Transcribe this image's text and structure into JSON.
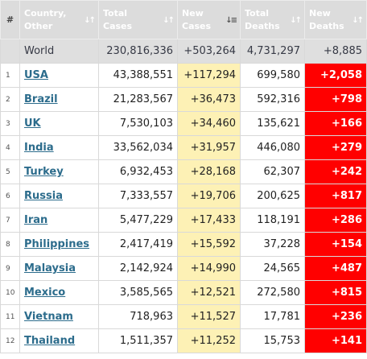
{
  "table": {
    "headers": {
      "rank": "#",
      "country": [
        "Country,",
        "Other"
      ],
      "total_cases": [
        "Total",
        "Cases"
      ],
      "new_cases": [
        "New",
        "Cases"
      ],
      "total_deaths": [
        "Total",
        "Deaths"
      ],
      "new_deaths": [
        "New",
        "Deaths"
      ]
    },
    "icons": {
      "sort": "sort-arrows-icon",
      "sort_active": "sort-descending-icon"
    },
    "colors": {
      "header_bg": "#dcdcdc",
      "world_bg": "#dfdfdf",
      "new_cases_bg": "#fdf1b5",
      "new_deaths_bg": "#ff0000",
      "country_link": "#2c6c8c"
    },
    "world": {
      "country": "World",
      "total_cases": "230,816,336",
      "new_cases": "+503,264",
      "total_deaths": "4,731,297",
      "new_deaths": "+8,885"
    },
    "rows": [
      {
        "rank": "1",
        "country": "USA",
        "total_cases": "43,388,551",
        "new_cases": "+117,294",
        "total_deaths": "699,580",
        "new_deaths": "+2,058"
      },
      {
        "rank": "2",
        "country": "Brazil",
        "total_cases": "21,283,567",
        "new_cases": "+36,473",
        "total_deaths": "592,316",
        "new_deaths": "+798"
      },
      {
        "rank": "3",
        "country": "UK",
        "total_cases": "7,530,103",
        "new_cases": "+34,460",
        "total_deaths": "135,621",
        "new_deaths": "+166"
      },
      {
        "rank": "4",
        "country": "India",
        "total_cases": "33,562,034",
        "new_cases": "+31,957",
        "total_deaths": "446,080",
        "new_deaths": "+279"
      },
      {
        "rank": "5",
        "country": "Turkey",
        "total_cases": "6,932,453",
        "new_cases": "+28,168",
        "total_deaths": "62,307",
        "new_deaths": "+242"
      },
      {
        "rank": "6",
        "country": "Russia",
        "total_cases": "7,333,557",
        "new_cases": "+19,706",
        "total_deaths": "200,625",
        "new_deaths": "+817"
      },
      {
        "rank": "7",
        "country": "Iran",
        "total_cases": "5,477,229",
        "new_cases": "+17,433",
        "total_deaths": "118,191",
        "new_deaths": "+286"
      },
      {
        "rank": "8",
        "country": "Philippines",
        "total_cases": "2,417,419",
        "new_cases": "+15,592",
        "total_deaths": "37,228",
        "new_deaths": "+154"
      },
      {
        "rank": "9",
        "country": "Malaysia",
        "total_cases": "2,142,924",
        "new_cases": "+14,990",
        "total_deaths": "24,565",
        "new_deaths": "+487"
      },
      {
        "rank": "10",
        "country": "Mexico",
        "total_cases": "3,585,565",
        "new_cases": "+12,521",
        "total_deaths": "272,580",
        "new_deaths": "+815"
      },
      {
        "rank": "11",
        "country": "Vietnam",
        "total_cases": "718,963",
        "new_cases": "+11,527",
        "total_deaths": "17,781",
        "new_deaths": "+236"
      },
      {
        "rank": "12",
        "country": "Thailand",
        "total_cases": "1,511,357",
        "new_cases": "+11,252",
        "total_deaths": "15,753",
        "new_deaths": "+141"
      }
    ]
  }
}
